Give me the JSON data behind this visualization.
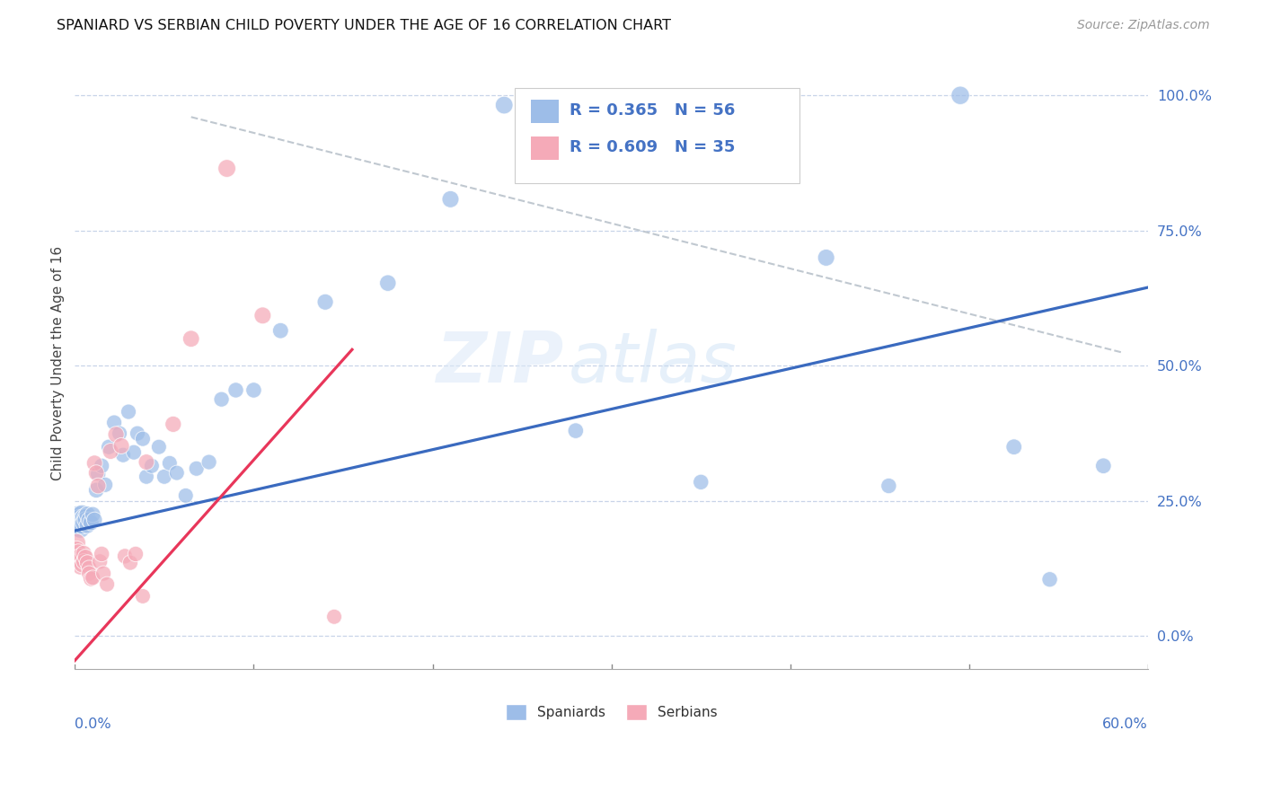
{
  "title": "SPANIARD VS SERBIAN CHILD POVERTY UNDER THE AGE OF 16 CORRELATION CHART",
  "source": "Source: ZipAtlas.com",
  "ylabel": "Child Poverty Under the Age of 16",
  "yticks": [
    0.0,
    0.25,
    0.5,
    0.75,
    1.0
  ],
  "ytick_labels": [
    "0.0%",
    "25.0%",
    "50.0%",
    "75.0%",
    "100.0%"
  ],
  "xlim": [
    0.0,
    0.6
  ],
  "ylim": [
    -0.06,
    1.07
  ],
  "watermark_zip": "ZIP",
  "watermark_atlas": "atlas",
  "spaniards_R": 0.365,
  "spaniards_N": 56,
  "serbians_R": 0.609,
  "serbians_N": 35,
  "spaniard_color": "#9dbde8",
  "serbian_color": "#f5aab8",
  "spaniard_line_color": "#3a6abf",
  "serbian_line_color": "#e8365a",
  "legend_spaniard_label": "Spaniards",
  "legend_serbian_label": "Serbians",
  "spaniard_x": [
    0.001,
    0.001,
    0.002,
    0.002,
    0.003,
    0.003,
    0.004,
    0.004,
    0.004,
    0.005,
    0.005,
    0.006,
    0.006,
    0.007,
    0.007,
    0.008,
    0.009,
    0.01,
    0.011,
    0.012,
    0.013,
    0.015,
    0.017,
    0.019,
    0.022,
    0.025,
    0.027,
    0.03,
    0.033,
    0.035,
    0.038,
    0.04,
    0.043,
    0.047,
    0.05,
    0.053,
    0.057,
    0.062,
    0.068,
    0.075,
    0.082,
    0.09,
    0.1,
    0.115,
    0.14,
    0.175,
    0.21,
    0.24,
    0.28,
    0.35,
    0.42,
    0.455,
    0.495,
    0.525,
    0.545,
    0.575
  ],
  "spaniard_y": [
    0.215,
    0.21,
    0.22,
    0.205,
    0.215,
    0.2,
    0.225,
    0.215,
    0.205,
    0.22,
    0.21,
    0.22,
    0.215,
    0.225,
    0.205,
    0.215,
    0.21,
    0.225,
    0.215,
    0.27,
    0.3,
    0.315,
    0.28,
    0.35,
    0.395,
    0.375,
    0.335,
    0.415,
    0.34,
    0.375,
    0.365,
    0.295,
    0.315,
    0.35,
    0.295,
    0.32,
    0.302,
    0.26,
    0.31,
    0.322,
    0.438,
    0.455,
    0.455,
    0.565,
    0.618,
    0.653,
    0.808,
    0.982,
    0.38,
    0.285,
    0.7,
    0.278,
    1.0,
    0.35,
    0.105,
    0.315
  ],
  "spaniard_sizes": [
    420,
    380,
    340,
    300,
    290,
    260,
    240,
    220,
    200,
    195,
    190,
    185,
    180,
    178,
    172,
    168,
    165,
    162,
    160,
    158,
    155,
    153,
    152,
    152,
    152,
    150,
    150,
    150,
    150,
    150,
    150,
    148,
    148,
    148,
    148,
    148,
    148,
    148,
    150,
    150,
    152,
    155,
    158,
    162,
    168,
    175,
    185,
    200,
    158,
    155,
    185,
    155,
    215,
    162,
    155,
    160
  ],
  "serbian_x": [
    0.001,
    0.001,
    0.002,
    0.002,
    0.003,
    0.003,
    0.004,
    0.005,
    0.005,
    0.006,
    0.007,
    0.008,
    0.008,
    0.009,
    0.01,
    0.011,
    0.012,
    0.013,
    0.014,
    0.015,
    0.016,
    0.018,
    0.02,
    0.023,
    0.026,
    0.028,
    0.031,
    0.034,
    0.038,
    0.04,
    0.055,
    0.065,
    0.085,
    0.105,
    0.145
  ],
  "serbian_y": [
    0.173,
    0.16,
    0.155,
    0.138,
    0.148,
    0.128,
    0.132,
    0.153,
    0.138,
    0.146,
    0.136,
    0.126,
    0.116,
    0.106,
    0.108,
    0.32,
    0.302,
    0.278,
    0.138,
    0.152,
    0.116,
    0.096,
    0.342,
    0.373,
    0.352,
    0.148,
    0.136,
    0.152,
    0.074,
    0.322,
    0.392,
    0.55,
    0.865,
    0.593,
    0.036
  ],
  "serbian_sizes": [
    210,
    195,
    180,
    168,
    170,
    160,
    162,
    168,
    162,
    164,
    160,
    157,
    154,
    152,
    150,
    165,
    163,
    161,
    154,
    157,
    152,
    150,
    167,
    170,
    167,
    154,
    152,
    155,
    148,
    164,
    170,
    180,
    202,
    184,
    148
  ],
  "blue_line_x": [
    0.0,
    0.6
  ],
  "blue_line_y": [
    0.195,
    0.645
  ],
  "pink_line_x": [
    0.0,
    0.155
  ],
  "pink_line_y": [
    -0.045,
    0.53
  ],
  "diag_line_x": [
    0.065,
    0.585
  ],
  "diag_line_y": [
    0.96,
    0.525
  ]
}
